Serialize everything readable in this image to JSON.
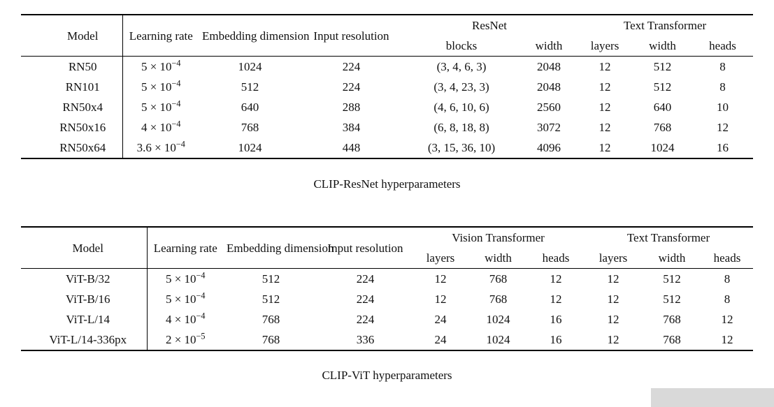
{
  "page": {
    "background": "#ffffff",
    "text_color": "#111111",
    "rule_color": "#000000",
    "watermark_color": "#d9d9d9"
  },
  "tables": [
    {
      "caption": "CLIP-ResNet hyperparameters",
      "headers": {
        "model": "Model",
        "learning_rate": "Learning\nrate",
        "embedding_dimension": "Embedding\ndimension",
        "input_resolution": "Input\nresolution",
        "group1": "ResNet",
        "group1_sub": [
          "blocks",
          "width"
        ],
        "group2": "Text Transformer",
        "group2_sub": [
          "layers",
          "width",
          "heads"
        ]
      },
      "rows": [
        {
          "model": "RN50",
          "lr_base": "5 × 10",
          "lr_exp": "−4",
          "cells": [
            "1024",
            "224",
            "(3, 4, 6, 3)",
            "2048",
            "12",
            "512",
            "8"
          ]
        },
        {
          "model": "RN101",
          "lr_base": "5 × 10",
          "lr_exp": "−4",
          "cells": [
            "512",
            "224",
            "(3, 4, 23, 3)",
            "2048",
            "12",
            "512",
            "8"
          ]
        },
        {
          "model": "RN50x4",
          "lr_base": "5 × 10",
          "lr_exp": "−4",
          "cells": [
            "640",
            "288",
            "(4, 6, 10, 6)",
            "2560",
            "12",
            "640",
            "10"
          ]
        },
        {
          "model": "RN50x16",
          "lr_base": "4 × 10",
          "lr_exp": "−4",
          "cells": [
            "768",
            "384",
            "(6, 8, 18, 8)",
            "3072",
            "12",
            "768",
            "12"
          ]
        },
        {
          "model": "RN50x64",
          "lr_base": "3.6 × 10",
          "lr_exp": "−4",
          "cells": [
            "1024",
            "448",
            "(3, 15, 36, 10)",
            "4096",
            "12",
            "1024",
            "16"
          ]
        }
      ]
    },
    {
      "caption": "CLIP-ViT hyperparameters",
      "headers": {
        "model": "Model",
        "learning_rate": "Learning\nrate",
        "embedding_dimension": "Embedding\ndimension",
        "input_resolution": "Input\nresolution",
        "group1": "Vision Transformer",
        "group1_sub": [
          "layers",
          "width",
          "heads"
        ],
        "group2": "Text Transformer",
        "group2_sub": [
          "layers",
          "width",
          "heads"
        ]
      },
      "rows": [
        {
          "model": "ViT-B/32",
          "lr_base": "5 × 10",
          "lr_exp": "−4",
          "cells": [
            "512",
            "224",
            "12",
            "768",
            "12",
            "12",
            "512",
            "8"
          ]
        },
        {
          "model": "ViT-B/16",
          "lr_base": "5 × 10",
          "lr_exp": "−4",
          "cells": [
            "512",
            "224",
            "12",
            "768",
            "12",
            "12",
            "512",
            "8"
          ]
        },
        {
          "model": "ViT-L/14",
          "lr_base": "4 × 10",
          "lr_exp": "−4",
          "cells": [
            "768",
            "224",
            "24",
            "1024",
            "16",
            "12",
            "768",
            "12"
          ]
        },
        {
          "model": "ViT-L/14-336px",
          "lr_base": "2 × 10",
          "lr_exp": "−5",
          "cells": [
            "768",
            "336",
            "24",
            "1024",
            "16",
            "12",
            "768",
            "12"
          ]
        }
      ]
    }
  ]
}
